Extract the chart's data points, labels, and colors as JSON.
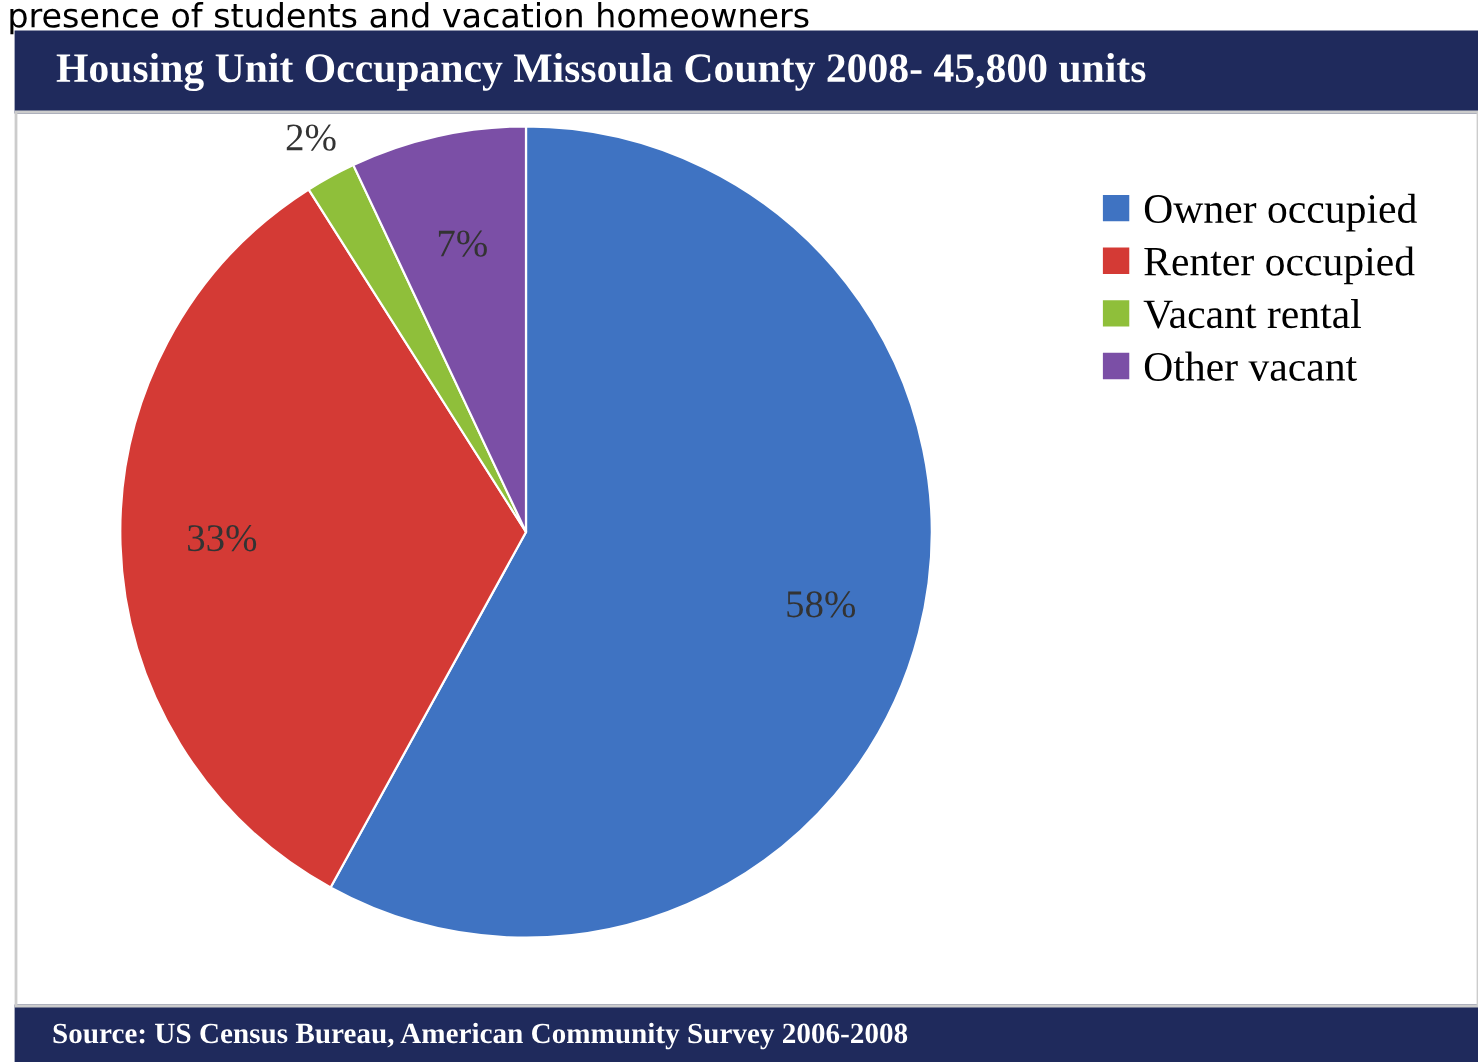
{
  "chart_data": {
    "type": "pie",
    "title": "Housing Unit Occupancy Missoula County 2008- 45,800 units",
    "categories": [
      "Owner occupied",
      "Renter occupied",
      "Vacant rental",
      "Other vacant"
    ],
    "values": [
      58,
      33,
      2,
      7
    ],
    "colors": [
      "#3f73c2",
      "#d43a35",
      "#8fbf3a",
      "#7b4fa6"
    ],
    "value_labels": [
      "58%",
      "33%",
      "2%",
      "7%"
    ],
    "legend": "top right",
    "annotations": [
      "presence of students and vacation homeowners",
      "Source: US Census Bureau, American Community Survey 2006-2008"
    ]
  }
}
